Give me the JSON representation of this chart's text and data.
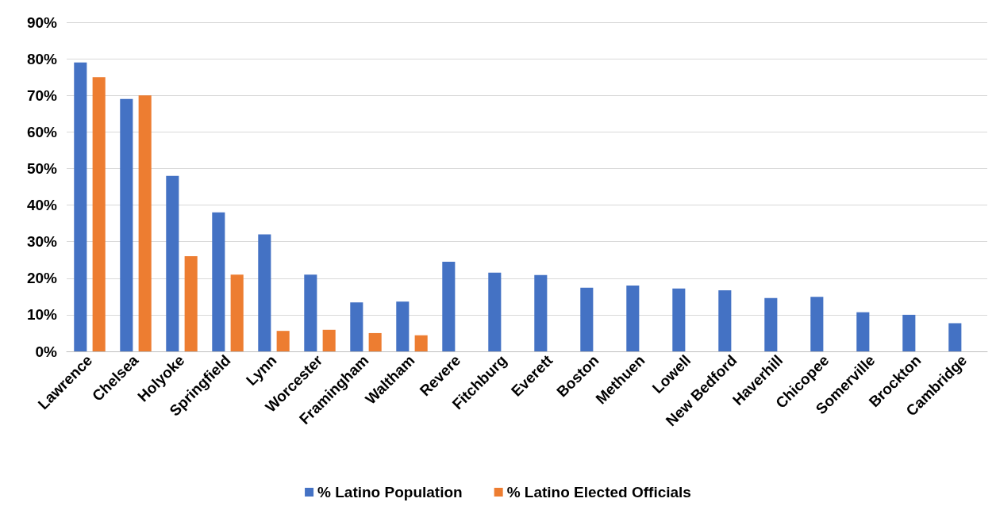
{
  "chart_data": {
    "type": "bar",
    "categories": [
      "Lawrence",
      "Chelsea",
      "Holyoke",
      "Springfield",
      "Lynn",
      "Worcester",
      "Framingham",
      "Waltham",
      "Revere",
      "Fitchburg",
      "Everett",
      "Boston",
      "Methuen",
      "Lowell",
      "New Bedford",
      "Haverhill",
      "Chicopee",
      "Somerville",
      "Brockton",
      "Cambridge"
    ],
    "series": [
      {
        "name": "% Latino Population",
        "color": "#4472c4",
        "values": [
          79,
          69,
          48,
          38,
          32,
          21,
          13.4,
          13.6,
          24.5,
          21.5,
          20.9,
          17.4,
          18,
          17.2,
          16.7,
          14.6,
          14.9,
          10.7,
          10,
          7.7
        ]
      },
      {
        "name": "% Latino Elected Officials",
        "color": "#ed7d31",
        "values": [
          75,
          70,
          26,
          21,
          5.6,
          5.9,
          5,
          4.4,
          null,
          null,
          null,
          null,
          null,
          null,
          null,
          null,
          null,
          null,
          null,
          null
        ]
      }
    ],
    "ylim": [
      0,
      90
    ],
    "yticks": [
      {
        "value": 0,
        "label": "0%"
      },
      {
        "value": 10,
        "label": "10%"
      },
      {
        "value": 20,
        "label": "20%"
      },
      {
        "value": 30,
        "label": "30%"
      },
      {
        "value": 40,
        "label": "40%"
      },
      {
        "value": 50,
        "label": "50%"
      },
      {
        "value": 60,
        "label": "60%"
      },
      {
        "value": 70,
        "label": "70%"
      },
      {
        "value": 80,
        "label": "80%"
      },
      {
        "value": 90,
        "label": "90%"
      }
    ],
    "grid": "y",
    "legend": "bottom"
  }
}
